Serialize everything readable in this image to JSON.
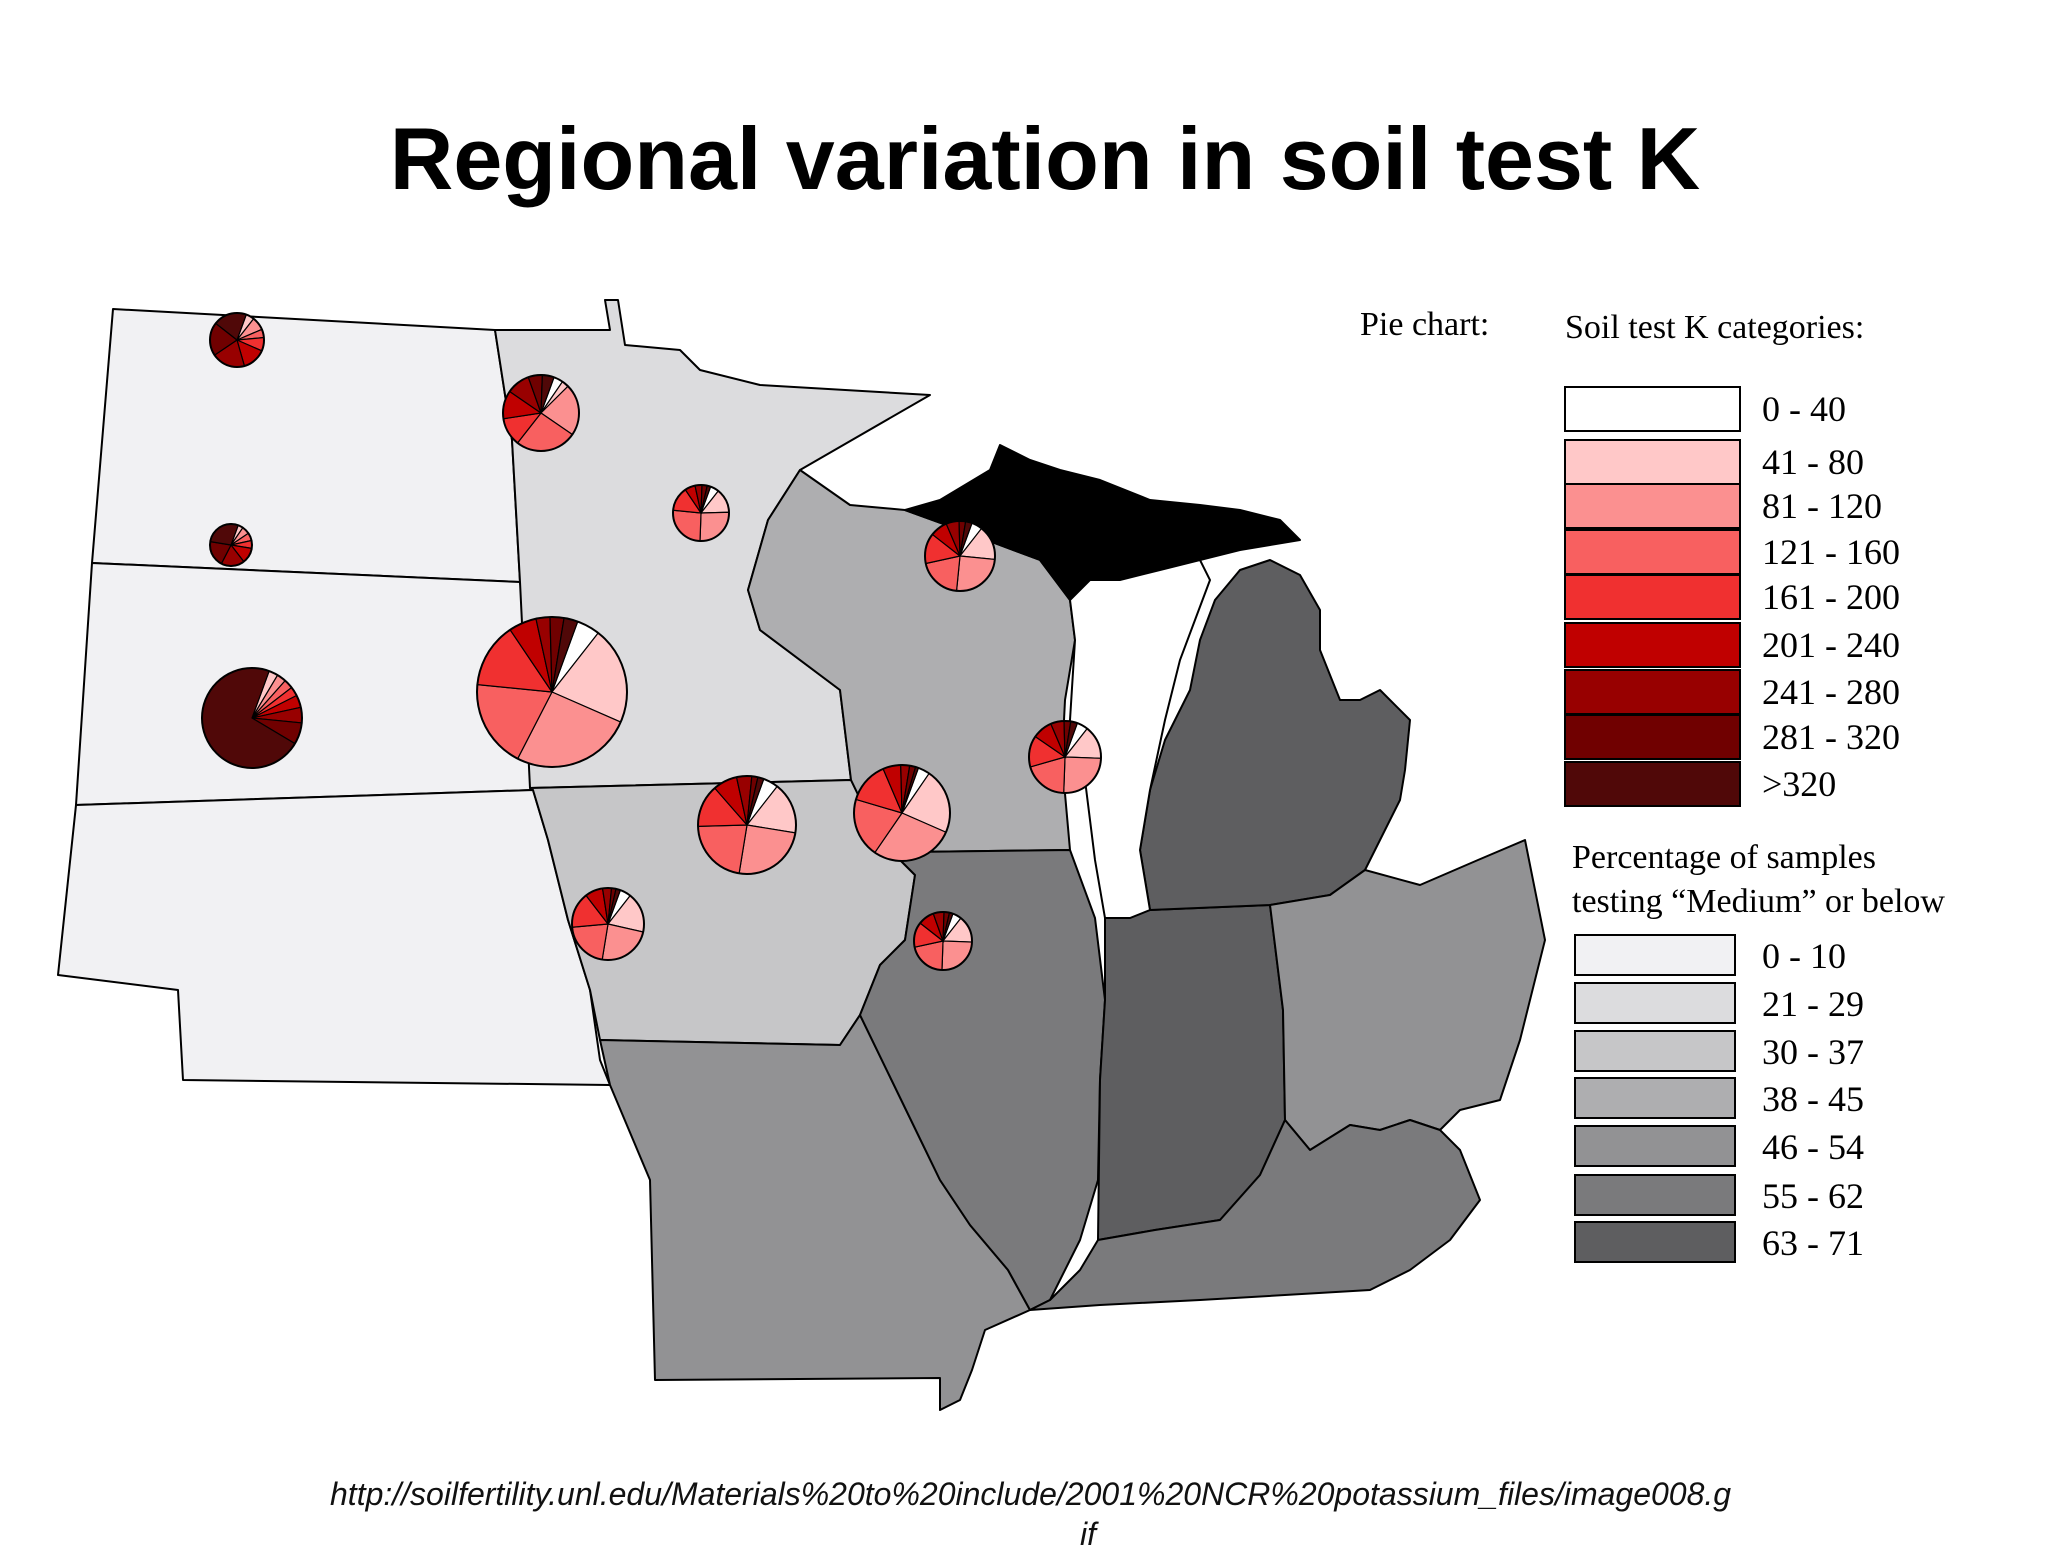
{
  "title": "Regional variation in soil test K",
  "legend": {
    "pie_heading": "Pie chart:",
    "k_heading": "Soil test K categories:",
    "k_categories": [
      {
        "label": "0 - 40",
        "color": "#ffffff"
      },
      {
        "label": "41 - 80",
        "color": "#ffc8c8"
      },
      {
        "label": "81 - 120",
        "color": "#fb9090"
      },
      {
        "label": "121 - 160",
        "color": "#f86060"
      },
      {
        "label": "161 - 200",
        "color": "#f03030"
      },
      {
        "label": "201 - 240",
        "color": "#c00000"
      },
      {
        "label": "241 - 280",
        "color": "#980000"
      },
      {
        "label": "281 - 320",
        "color": "#700000"
      },
      {
        "label": ">320",
        "color": "#500808"
      }
    ],
    "pct_heading_line1": "Percentage of samples",
    "pct_heading_line2": "testing “Medium” or below",
    "pct_categories": [
      {
        "label": "0 - 10",
        "color": "#f1f1f3"
      },
      {
        "label": "21 - 29",
        "color": "#dcdcde"
      },
      {
        "label": "30 - 37",
        "color": "#c6c6c8"
      },
      {
        "label": "38 - 45",
        "color": "#aeaeb0"
      },
      {
        "label": "46 - 54",
        "color": "#929294"
      },
      {
        "label": "55 - 62",
        "color": "#7a7a7c"
      },
      {
        "label": "63 - 71",
        "color": "#5e5e60"
      }
    ]
  },
  "states": [
    {
      "id": "north-dakota",
      "pct_category": "0 - 10"
    },
    {
      "id": "south-dakota",
      "pct_category": "0 - 10"
    },
    {
      "id": "nebraska",
      "pct_category": "0 - 10"
    },
    {
      "id": "minnesota",
      "pct_category": "21 - 29"
    },
    {
      "id": "iowa",
      "pct_category": "30 - 37"
    },
    {
      "id": "wisconsin",
      "pct_category": "38 - 45"
    },
    {
      "id": "missouri",
      "pct_category": "46 - 54"
    },
    {
      "id": "illinois",
      "pct_category": "55 - 62"
    },
    {
      "id": "indiana",
      "pct_category": "63 - 71"
    },
    {
      "id": "michigan",
      "pct_category": "63 - 71"
    },
    {
      "id": "ohio",
      "pct_category": "46 - 54"
    },
    {
      "id": "kentucky",
      "pct_category": "55 - 62"
    }
  ],
  "pies": [
    {
      "state": "north-dakota",
      "shares": [
        0,
        5,
        8,
        5,
        8,
        14,
        20,
        20,
        20
      ]
    },
    {
      "state": "south-dakota",
      "shares": [
        0,
        4,
        6,
        6,
        6,
        12,
        18,
        20,
        28
      ]
    },
    {
      "state": "nebraska",
      "shares": [
        0,
        3,
        3,
        3,
        3,
        4,
        5,
        7,
        72
      ]
    },
    {
      "state": "minnesota",
      "shares": [
        4,
        3,
        22,
        26,
        12,
        12,
        10,
        6,
        5
      ]
    },
    {
      "state": "iowa",
      "shares": [
        5,
        21,
        26,
        19,
        14,
        6,
        3,
        3,
        3
      ]
    },
    {
      "state": "wisconsin",
      "shares": [
        5,
        14,
        26,
        26,
        14,
        6,
        4,
        3,
        2
      ]
    },
    {
      "state": "missouri",
      "shares": [
        5,
        18,
        24,
        21,
        16,
        8,
        4,
        2,
        2
      ]
    },
    {
      "state": "illinois",
      "shares": [
        5,
        17,
        25,
        22,
        14,
        8,
        5,
        2,
        2
      ]
    },
    {
      "state": "indiana",
      "shares": [
        4,
        22,
        28,
        20,
        14,
        6,
        3,
        2,
        1
      ]
    },
    {
      "state": "michigan",
      "shares": [
        5,
        16,
        25,
        20,
        14,
        8,
        6,
        3,
        3
      ]
    },
    {
      "state": "ohio",
      "shares": [
        5,
        15,
        25,
        20,
        14,
        9,
        6,
        3,
        3
      ]
    },
    {
      "state": "kentucky",
      "shares": [
        5,
        15,
        25,
        21,
        14,
        9,
        6,
        3,
        2
      ]
    }
  ],
  "source_url_line1": "http://soilfertility.unl.edu/Materials%20to%20include/2001%20NCR%20potassium_files/image008.g",
  "source_url_line2": "if"
}
